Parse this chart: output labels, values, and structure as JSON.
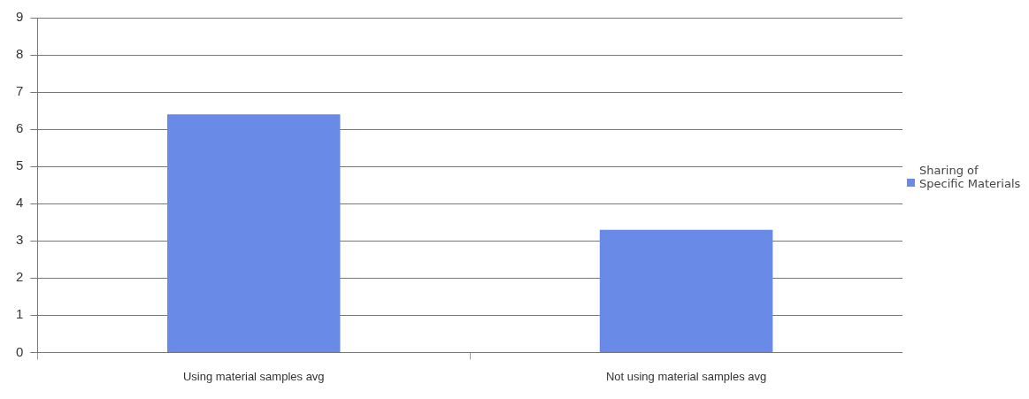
{
  "chart_data": {
    "type": "bar",
    "categories": [
      "Using material samples avg",
      "Not using material samples avg"
    ],
    "series": [
      {
        "name": "Sharing of Specific Materials",
        "color": "#6a8ae8",
        "values": [
          6.4,
          3.3
        ]
      }
    ],
    "ylim": [
      0,
      9
    ],
    "yticks": [
      0,
      1,
      2,
      3,
      4,
      5,
      6,
      7,
      8,
      9
    ],
    "grid": "y",
    "legend": "right"
  }
}
